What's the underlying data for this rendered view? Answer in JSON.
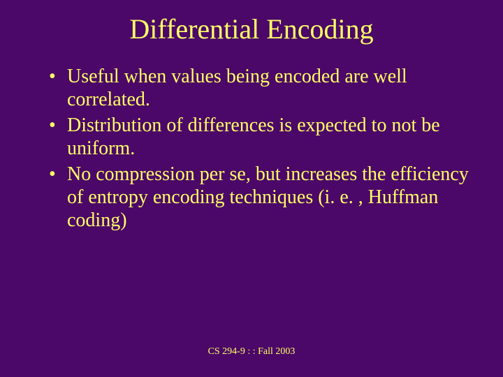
{
  "slide": {
    "title": "Differential Encoding",
    "bullets": [
      "Useful when values being encoded are well correlated.",
      "Distribution of differences is expected to not be uniform.",
      "No compression per se, but increases the efficiency of entropy encoding techniques (i. e. , Huffman coding)"
    ],
    "footer": "CS 294-9 : : Fall 2003"
  },
  "style": {
    "background_color": "#4b0868",
    "text_color": "#ffff66",
    "title_fontsize": 40,
    "body_fontsize": 28,
    "footer_fontsize": 14,
    "font_family": "Times New Roman"
  }
}
